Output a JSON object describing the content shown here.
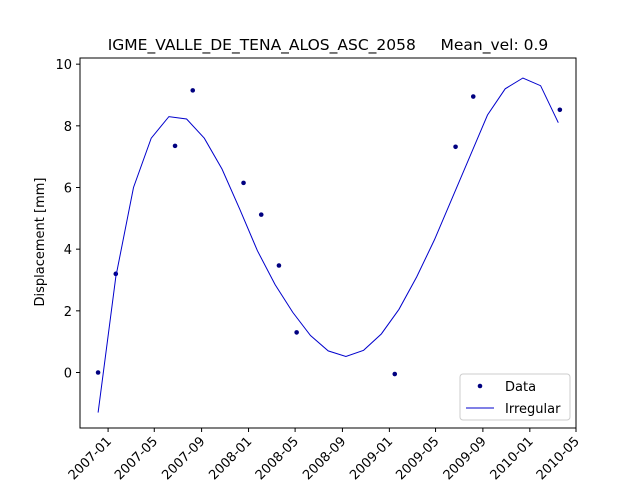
{
  "chart_data": {
    "type": "line",
    "title": "IGME_VALLE_DE_TENA_ALOS_ASC_2058     Mean_vel: 0.9",
    "xlabel": "",
    "ylabel": "Displacement [mm]",
    "x_axis_type": "date",
    "xlim": [
      "2006-10-20",
      "2010-05-01"
    ],
    "ylim": [
      -1.8,
      10.2
    ],
    "x_ticks": [
      "2007-01",
      "2007-05",
      "2007-09",
      "2008-01",
      "2008-05",
      "2008-09",
      "2009-01",
      "2009-05",
      "2009-09",
      "2010-01",
      "2010-05"
    ],
    "y_ticks": [
      0,
      2,
      4,
      6,
      8,
      10
    ],
    "grid": false,
    "legend_position": "lower right",
    "series": [
      {
        "name": "Data",
        "style": "points",
        "color": "#000080",
        "x": [
          "2006-12-06",
          "2007-01-21",
          "2007-06-24",
          "2007-08-09",
          "2007-12-19",
          "2008-02-03",
          "2008-03-20",
          "2008-05-05",
          "2009-01-15",
          "2009-06-22",
          "2009-08-07",
          "2010-03-20"
        ],
        "y": [
          0.0,
          3.2,
          7.35,
          9.15,
          6.15,
          5.12,
          3.47,
          1.3,
          -0.05,
          7.32,
          8.95,
          8.52
        ]
      },
      {
        "name": "Irregular",
        "style": "line",
        "color": "#0000cc",
        "x": [
          "2006-12-06",
          "2007-01-21",
          "2007-03-08",
          "2007-04-23",
          "2007-06-08",
          "2007-07-24",
          "2007-09-08",
          "2007-10-24",
          "2007-12-09",
          "2008-01-24",
          "2008-03-10",
          "2008-04-25",
          "2008-06-10",
          "2008-07-26",
          "2008-09-10",
          "2008-10-26",
          "2008-12-11",
          "2009-01-26",
          "2009-03-13",
          "2009-04-28",
          "2009-06-13",
          "2009-07-29",
          "2009-09-13",
          "2009-10-29",
          "2009-12-14",
          "2010-01-29",
          "2010-03-16"
        ],
        "y": [
          -1.3,
          3.1,
          6.0,
          7.6,
          8.3,
          8.22,
          7.6,
          6.6,
          5.3,
          3.95,
          2.85,
          1.95,
          1.2,
          0.7,
          0.52,
          0.72,
          1.25,
          2.05,
          3.1,
          4.3,
          5.65,
          7.0,
          8.35,
          9.2,
          9.55,
          9.3,
          8.1
        ]
      }
    ]
  }
}
